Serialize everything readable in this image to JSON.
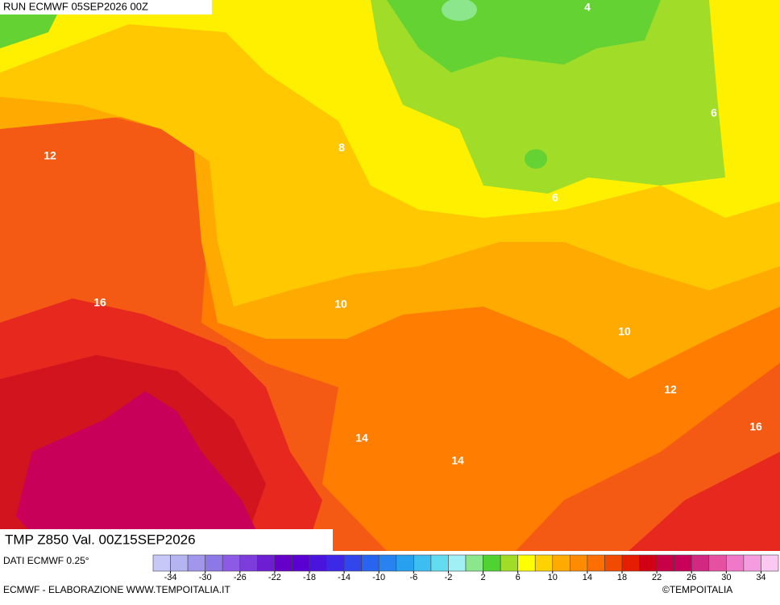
{
  "header": {
    "run": "RUN ECMWF 05SEP2026 00Z"
  },
  "map": {
    "title": "TMP Z850 Val. 00Z15SEP2026",
    "contour_labels": [
      "4",
      "6",
      "8",
      "12",
      "6",
      "16",
      "10",
      "10",
      "12",
      "16",
      "14",
      "14"
    ]
  },
  "footer": {
    "source": "DATI ECMWF 0.25°",
    "credit": "ECMWF - ELABORAZIONE WWW.TEMPOITALIA.IT",
    "copyright": "©TEMPOITALIA"
  },
  "colorbar": {
    "range": [
      -36,
      36
    ],
    "colors": [
      "#c8c8f8",
      "#b4b4f0",
      "#a096eb",
      "#8c78e6",
      "#8c5ae6",
      "#7d3cdc",
      "#6e1ed2",
      "#6400c8",
      "#5a00d2",
      "#4b14dc",
      "#3c28e6",
      "#3246eb",
      "#2864f0",
      "#2882f0",
      "#28a0f0",
      "#3cbef0",
      "#64dcf0",
      "#a0f0f5",
      "#8ce68c",
      "#50d232",
      "#a0dc28",
      "#ffff00",
      "#ffd200",
      "#ffaa00",
      "#ff8c00",
      "#ff6e00",
      "#f04b00",
      "#e61e00",
      "#d20014",
      "#c80046",
      "#c8005a",
      "#d22882",
      "#e650a0",
      "#f078c8",
      "#f59ce0",
      "#fac8f0"
    ],
    "ticks": [
      -34,
      -30,
      -26,
      -22,
      -18,
      -14,
      -10,
      -6,
      -2,
      2,
      6,
      10,
      14,
      18,
      22,
      26,
      30,
      34
    ]
  }
}
